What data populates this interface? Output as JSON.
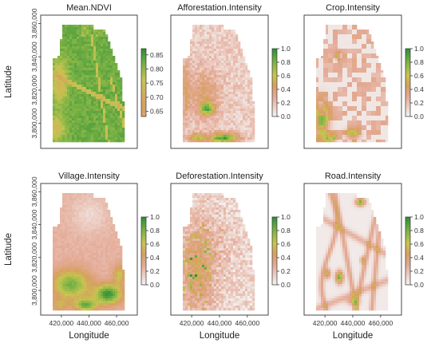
{
  "chart_data": [
    {
      "type": "heatmap",
      "title": "Mean.NDVI",
      "xlabel": "",
      "ylabel": "Latitude",
      "xlim": [
        405000,
        475000
      ],
      "ylim": [
        3785000,
        3865000
      ],
      "xticks": [],
      "yticks": [
        "3,800,000",
        "3,820,000",
        "3,840,000",
        "3,860,000"
      ],
      "colorbar": {
        "range": [
          0.62,
          0.89
        ],
        "ticks": [
          "0.65",
          "0.70",
          "0.75",
          "0.80",
          "0.85"
        ]
      },
      "field": "ndvi"
    },
    {
      "type": "heatmap",
      "title": "Afforestation.Intensity",
      "xlabel": "",
      "ylabel": "",
      "xlim": [
        405000,
        475000
      ],
      "ylim": [
        3785000,
        3865000
      ],
      "xticks": [],
      "yticks": [],
      "colorbar": {
        "range": [
          0,
          1
        ],
        "ticks": [
          "0.0",
          "0.2",
          "0.4",
          "0.6",
          "0.8",
          "1.0"
        ]
      },
      "field": "afforestation"
    },
    {
      "type": "heatmap",
      "title": "Crop.Intensity",
      "xlabel": "",
      "ylabel": "",
      "xlim": [
        405000,
        475000
      ],
      "ylim": [
        3785000,
        3865000
      ],
      "xticks": [],
      "yticks": [],
      "colorbar": {
        "range": [
          0,
          1
        ],
        "ticks": [
          "0.0",
          "0.2",
          "0.4",
          "0.6",
          "0.8",
          "1.0"
        ]
      },
      "field": "crop"
    },
    {
      "type": "heatmap",
      "title": "Village.Intensity",
      "xlabel": "Longitude",
      "ylabel": "Latitude",
      "xlim": [
        405000,
        475000
      ],
      "ylim": [
        3785000,
        3865000
      ],
      "xticks": [
        "420,000",
        "440,000",
        "460,000"
      ],
      "yticks": [
        "3,800,000",
        "3,820,000",
        "3,840,000",
        "3,860,000"
      ],
      "colorbar": {
        "range": [
          0,
          1
        ],
        "ticks": [
          "0.0",
          "0.2",
          "0.4",
          "0.6",
          "0.8",
          "1.0"
        ]
      },
      "field": "village"
    },
    {
      "type": "heatmap",
      "title": "Deforestation.Intensity",
      "xlabel": "Longitude",
      "ylabel": "",
      "xlim": [
        405000,
        475000
      ],
      "ylim": [
        3785000,
        3865000
      ],
      "xticks": [
        "420,000",
        "440,000",
        "460,000"
      ],
      "yticks": [],
      "colorbar": {
        "range": [
          0,
          1
        ],
        "ticks": [
          "0.0",
          "0.2",
          "0.4",
          "0.6",
          "0.8",
          "1.0"
        ]
      },
      "field": "deforestation"
    },
    {
      "type": "heatmap",
      "title": "Road.Intensity",
      "xlabel": "Longitude",
      "ylabel": "",
      "xlim": [
        405000,
        475000
      ],
      "ylim": [
        3785000,
        3865000
      ],
      "xticks": [
        "420,000",
        "440,000",
        "460,000"
      ],
      "yticks": [],
      "colorbar": {
        "range": [
          0,
          1
        ],
        "ticks": [
          "0.0",
          "0.2",
          "0.4",
          "0.6",
          "0.8",
          "1.0"
        ]
      },
      "field": "road"
    }
  ],
  "colors": {
    "low": "#f2f2f2",
    "mid_low": "#e8b4a6",
    "mid": "#d9a35e",
    "mid_high": "#c8c84a",
    "high": "#2e8b3a"
  }
}
